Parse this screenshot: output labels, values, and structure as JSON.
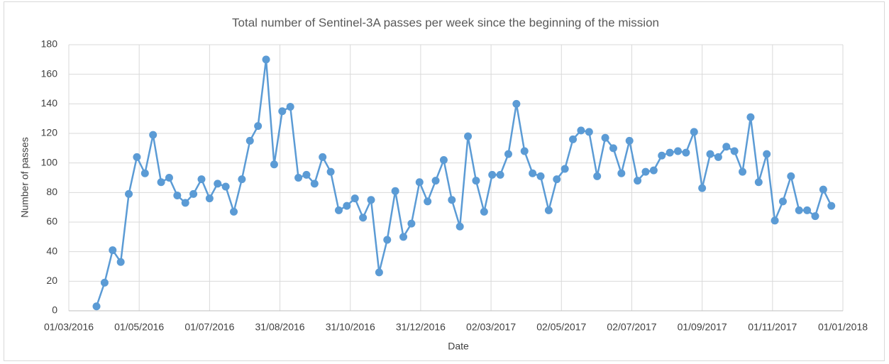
{
  "chart_data": {
    "type": "line",
    "title": "Total number of Sentinel-3A passes per week since the beginning of the mission",
    "x_label": "Date",
    "y_label": "Number of passes",
    "x": [
      "25/03/2016",
      "01/04/2016",
      "08/04/2016",
      "15/04/2016",
      "22/04/2016",
      "29/04/2016",
      "06/05/2016",
      "13/05/2016",
      "20/05/2016",
      "27/05/2016",
      "03/06/2016",
      "10/06/2016",
      "17/06/2016",
      "24/06/2016",
      "01/07/2016",
      "08/07/2016",
      "15/07/2016",
      "22/07/2016",
      "29/07/2016",
      "05/08/2016",
      "12/08/2016",
      "19/08/2016",
      "26/08/2016",
      "02/09/2016",
      "09/09/2016",
      "16/09/2016",
      "23/09/2016",
      "30/09/2016",
      "07/10/2016",
      "14/10/2016",
      "21/10/2016",
      "28/10/2016",
      "04/11/2016",
      "11/11/2016",
      "18/11/2016",
      "25/11/2016",
      "02/12/2016",
      "09/12/2016",
      "16/12/2016",
      "23/12/2016",
      "30/12/2016",
      "06/01/2017",
      "13/01/2017",
      "20/01/2017",
      "27/01/2017",
      "03/02/2017",
      "10/02/2017",
      "17/02/2017",
      "24/02/2017",
      "03/03/2017",
      "10/03/2017",
      "17/03/2017",
      "24/03/2017",
      "31/03/2017",
      "07/04/2017",
      "14/04/2017",
      "21/04/2017",
      "28/04/2017",
      "05/05/2017",
      "12/05/2017",
      "19/05/2017",
      "26/05/2017",
      "02/06/2017",
      "09/06/2017",
      "16/06/2017",
      "23/06/2017",
      "30/06/2017",
      "07/07/2017",
      "14/07/2017",
      "21/07/2017",
      "28/07/2017",
      "04/08/2017",
      "11/08/2017",
      "18/08/2017",
      "25/08/2017",
      "01/09/2017",
      "08/09/2017",
      "15/09/2017",
      "22/09/2017",
      "29/09/2017",
      "06/10/2017",
      "13/10/2017",
      "20/10/2017",
      "27/10/2017",
      "03/11/2017",
      "10/11/2017",
      "17/11/2017",
      "24/11/2017",
      "01/12/2017",
      "08/12/2017",
      "15/12/2017",
      "22/12/2017"
    ],
    "values": [
      3,
      19,
      41,
      33,
      79,
      104,
      93,
      119,
      87,
      90,
      78,
      73,
      79,
      89,
      76,
      86,
      84,
      67,
      89,
      115,
      125,
      170,
      99,
      135,
      138,
      90,
      92,
      86,
      104,
      94,
      68,
      71,
      76,
      63,
      75,
      26,
      48,
      81,
      50,
      59,
      87,
      74,
      88,
      102,
      75,
      57,
      118,
      88,
      67,
      92,
      92,
      106,
      140,
      108,
      93,
      91,
      68,
      89,
      96,
      116,
      122,
      121,
      91,
      117,
      110,
      93,
      115,
      88,
      94,
      95,
      105,
      107,
      108,
      107,
      121,
      83,
      106,
      104,
      111,
      108,
      94,
      131,
      87,
      106,
      61,
      74,
      91,
      68,
      68,
      64,
      82,
      71
    ],
    "color": "#5b9bd5",
    "xlim": [
      "01/03/2016",
      "01/01/2018"
    ],
    "xticks": [
      "01/03/2016",
      "01/05/2016",
      "01/07/2016",
      "31/08/2016",
      "31/10/2016",
      "31/12/2016",
      "02/03/2017",
      "02/05/2017",
      "02/07/2017",
      "01/09/2017",
      "01/11/2017",
      "01/01/2018"
    ],
    "ylim": [
      0,
      180
    ],
    "yticks": [
      0,
      20,
      40,
      60,
      80,
      100,
      120,
      140,
      160,
      180
    ],
    "grid": true
  }
}
